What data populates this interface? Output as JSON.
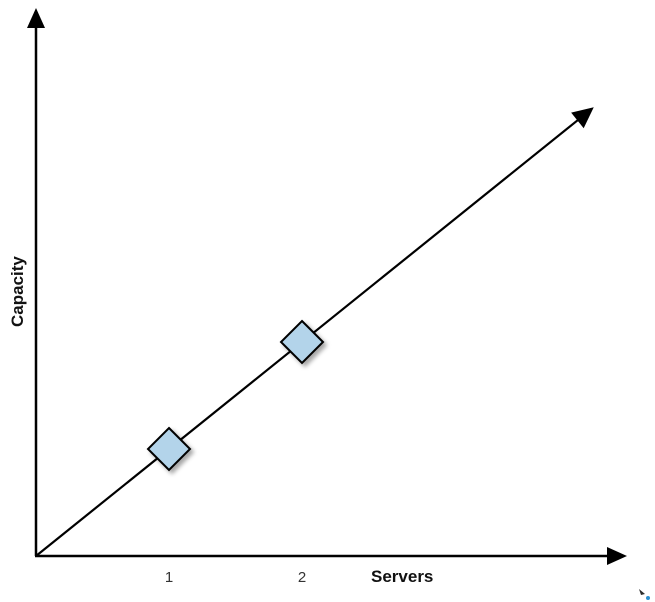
{
  "chart_data": {
    "type": "line",
    "title": "",
    "xlabel": "Servers",
    "ylabel": "Capacity",
    "x_ticks": [
      "1",
      "2"
    ],
    "series": [
      {
        "x": [
          1,
          2
        ],
        "y": [
          1,
          2
        ]
      }
    ],
    "grid": false,
    "colors": {
      "axis": "#000000",
      "line": "#000000",
      "marker_fill": "#b3d4ea",
      "marker_stroke": "#000000"
    }
  }
}
